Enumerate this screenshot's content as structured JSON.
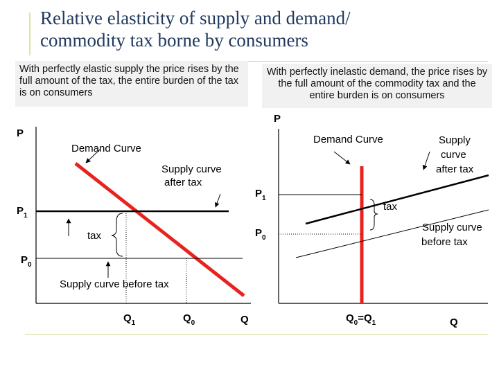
{
  "title": {
    "line1": "Relative elasticity of supply and demand/",
    "line2": "commodity tax borne by consumers"
  },
  "left_panel": {
    "description": "With perfectly elastic supply the price rises by the full amount of the tax, the entire burden of the tax is on consumers",
    "y_axis_label": "P",
    "x_axis_label": "Q",
    "demand_label": "Demand Curve",
    "supply_after_tax_label_line1": "Supply curve",
    "supply_after_tax_label_line2": "after tax",
    "supply_before_tax_label": "Supply curve before tax",
    "tax_label": "tax",
    "p1_label": "P",
    "p1_sub": "1",
    "p0_label": "P",
    "p0_sub": "0",
    "q1_label": "Q",
    "q1_sub": "1",
    "q0_label": "Q",
    "q0_sub": "0"
  },
  "right_panel": {
    "description": "With perfectly inelastic demand, the price rises by the full amount of the commodity tax and the entire burden is on consumers",
    "y_axis_label": "P",
    "x_axis_label": "Q",
    "demand_label": "Demand Curve",
    "supply_after_tax_label_line1": "Supply",
    "supply_after_tax_label_line2": "curve",
    "supply_after_tax_label_line3": "after tax",
    "supply_before_tax_label_line1": "Supply curve",
    "supply_before_tax_label_line2": "before tax",
    "tax_label": "tax",
    "p1_label": "P",
    "p1_sub": "1",
    "p0_label": "P",
    "p0_sub": "0",
    "q_label_a": "Q",
    "q_label_a_sub": "0",
    "q_label_eq": "=Q",
    "q_label_b_sub": "1"
  },
  "colors": {
    "title": "#213a5e",
    "demand": "#e8231f",
    "axis": "#000000",
    "box_bg": "#f1f1f1"
  }
}
